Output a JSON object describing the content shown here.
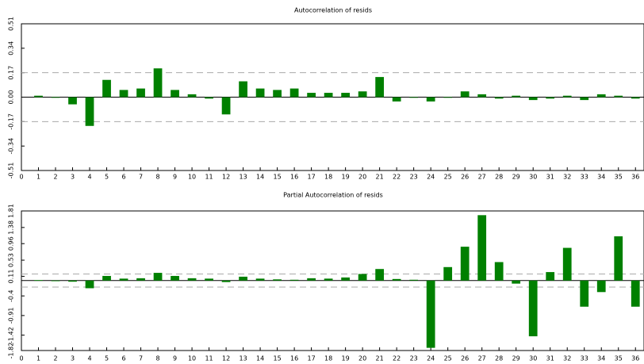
{
  "chart_data": [
    {
      "type": "bar",
      "title": "Autocorrelation of resids",
      "color": "#008000",
      "categories": [
        1,
        2,
        3,
        4,
        5,
        6,
        7,
        8,
        9,
        10,
        11,
        12,
        13,
        14,
        15,
        16,
        17,
        18,
        19,
        20,
        21,
        22,
        23,
        24,
        25,
        26,
        27,
        28,
        29,
        30,
        31,
        32,
        33,
        34,
        35,
        36
      ],
      "values": [
        0.01,
        0.0,
        -0.05,
        -0.2,
        0.12,
        0.05,
        0.06,
        0.2,
        0.05,
        0.02,
        -0.01,
        -0.12,
        0.11,
        0.06,
        0.05,
        0.06,
        0.03,
        0.03,
        0.03,
        0.04,
        0.14,
        -0.03,
        0.0,
        -0.03,
        0.0,
        0.04,
        0.02,
        -0.01,
        0.01,
        -0.02,
        -0.01,
        0.01,
        -0.02,
        0.02,
        0.01,
        -0.01
      ],
      "xlim": [
        0,
        36.5
      ],
      "xticks": [
        0,
        1,
        2,
        3,
        4,
        5,
        6,
        7,
        8,
        9,
        10,
        11,
        12,
        13,
        14,
        15,
        16,
        17,
        18,
        19,
        20,
        21,
        22,
        23,
        24,
        25,
        26,
        27,
        28,
        29,
        30,
        31,
        32,
        33,
        34,
        35,
        36
      ],
      "ylim": [
        -0.51,
        0.51
      ],
      "yticks": [
        -0.51,
        -0.34,
        -0.17,
        {
          "value": 0,
          "label": "0.00"
        },
        0.17,
        0.34,
        0.51
      ],
      "reference_lines": [
        0.17,
        -0.17
      ]
    },
    {
      "type": "bar",
      "title": "Partial Autocorrelation of resids",
      "color": "#008000",
      "categories": [
        1,
        2,
        3,
        4,
        5,
        6,
        7,
        8,
        9,
        10,
        11,
        12,
        13,
        14,
        15,
        16,
        17,
        18,
        19,
        20,
        21,
        22,
        23,
        24,
        25,
        26,
        27,
        28,
        29,
        30,
        31,
        32,
        33,
        34,
        35,
        36
      ],
      "values": [
        0.01,
        0.0,
        -0.03,
        -0.2,
        0.12,
        0.05,
        0.06,
        0.2,
        0.12,
        0.06,
        0.05,
        -0.04,
        0.1,
        0.05,
        0.03,
        0.02,
        0.06,
        0.05,
        0.08,
        0.17,
        0.3,
        0.04,
        0.02,
        -1.75,
        0.35,
        0.88,
        1.7,
        0.48,
        -0.08,
        -1.45,
        0.22,
        0.85,
        -0.68,
        -0.3,
        1.15,
        -0.68
      ],
      "xlim": [
        0,
        36.5
      ],
      "xticks": [
        0,
        1,
        2,
        3,
        4,
        5,
        6,
        7,
        8,
        9,
        10,
        11,
        12,
        13,
        14,
        15,
        16,
        17,
        18,
        19,
        20,
        21,
        22,
        23,
        24,
        25,
        26,
        27,
        28,
        29,
        30,
        31,
        32,
        33,
        34,
        35,
        36
      ],
      "ylim": [
        -1.82,
        1.81
      ],
      "yticks": [
        -1.82,
        -1.42,
        -0.91,
        -0.4,
        0.11,
        0.53,
        0.96,
        1.38,
        1.81
      ],
      "reference_lines": [
        0.17,
        -0.17
      ]
    }
  ]
}
